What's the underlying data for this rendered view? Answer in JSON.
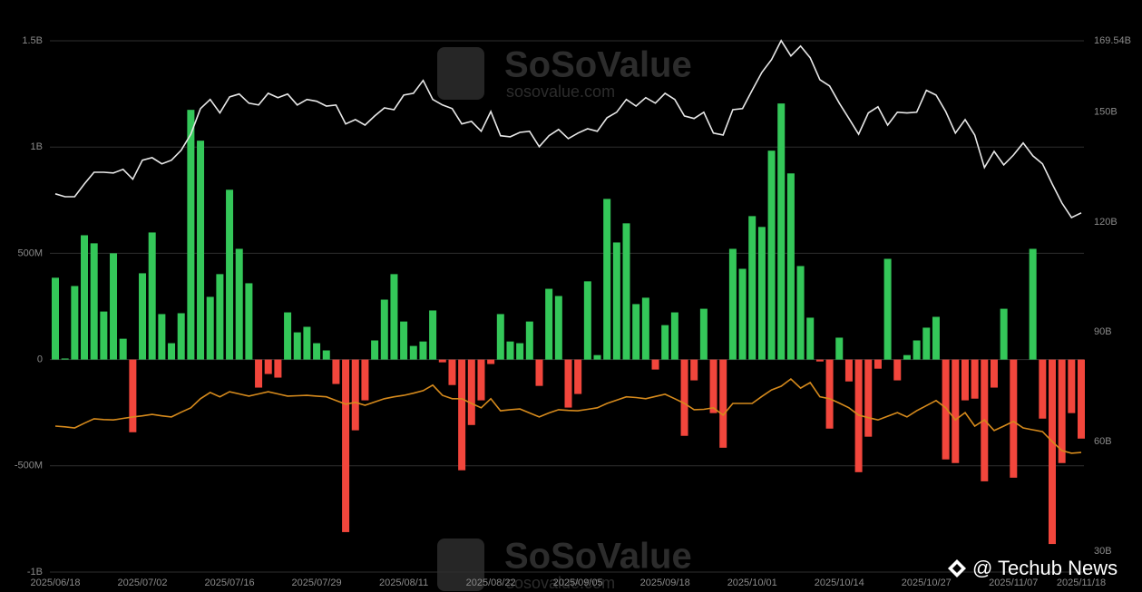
{
  "chart_data": {
    "type": "bar",
    "watermark": "SoSoValue",
    "watermark_url": "sosovalue.com",
    "credit": "@ Techub News",
    "categories": [
      "2025/06/18",
      null,
      null,
      null,
      null,
      null,
      null,
      null,
      null,
      "2025/07/02",
      null,
      null,
      null,
      null,
      null,
      null,
      null,
      null,
      "2025/07/16",
      null,
      null,
      null,
      null,
      null,
      null,
      null,
      null,
      "2025/07/29",
      null,
      null,
      null,
      null,
      null,
      null,
      null,
      null,
      "2025/08/11",
      null,
      null,
      null,
      null,
      null,
      null,
      null,
      null,
      "2025/08/22",
      null,
      null,
      null,
      null,
      null,
      null,
      null,
      null,
      "2025/09/05",
      null,
      null,
      null,
      null,
      null,
      null,
      null,
      null,
      "2025/09/18",
      null,
      null,
      null,
      null,
      null,
      null,
      null,
      null,
      "2025/10/01",
      null,
      null,
      null,
      null,
      null,
      null,
      null,
      null,
      "2025/10/14",
      null,
      null,
      null,
      null,
      null,
      null,
      null,
      null,
      "2025/10/27",
      null,
      null,
      null,
      null,
      null,
      null,
      null,
      null,
      "2025/11/07",
      null,
      null,
      null,
      null,
      null,
      null,
      "2025/11/18"
    ],
    "values": [
      385,
      5,
      346,
      585,
      547,
      226,
      500,
      98,
      -342,
      406,
      598,
      214,
      77,
      218,
      1175,
      1030,
      295,
      402,
      799,
      521,
      359,
      -132,
      -68,
      -85,
      222,
      128,
      154,
      77,
      43,
      -115,
      -812,
      -333,
      -192,
      90,
      282,
      402,
      179,
      64,
      85,
      231,
      -13,
      -120,
      -521,
      -308,
      -192,
      -21,
      214,
      85,
      77,
      179,
      -124,
      333,
      299,
      -226,
      -162,
      368,
      21,
      756,
      551,
      641,
      261,
      291,
      -47,
      162,
      222,
      -359,
      -98,
      239,
      -252,
      -415,
      521,
      427,
      675,
      624,
      983,
      1205,
      876,
      440,
      197,
      -9,
      -325,
      103,
      -103,
      -530,
      -363,
      -43,
      474,
      -98,
      21,
      90,
      150,
      201,
      -470,
      -487,
      -192,
      -184,
      -573,
      -132,
      239,
      -556,
      0,
      521,
      -278,
      -868,
      -487,
      -252,
      -372
    ],
    "color_up": "#34c759",
    "color_down": "#f2463c",
    "lines": [
      {
        "color": "#e8e8e8",
        "axis": "y2",
        "values": [
          127.7,
          126.9,
          126.9,
          130.4,
          133.6,
          133.6,
          133.4,
          134.4,
          131.7,
          136.9,
          137.6,
          135.9,
          136.9,
          139.6,
          144.0,
          151.0,
          153.5,
          149.8,
          154.2,
          155.0,
          152.5,
          152.0,
          155.2,
          154.0,
          155.0,
          152.0,
          153.5,
          153.0,
          151.7,
          152.0,
          146.8,
          148.0,
          146.5,
          149.0,
          151.2,
          150.7,
          154.7,
          155.2,
          158.7,
          153.5,
          152.0,
          151.0,
          146.8,
          147.5,
          144.8,
          150.2,
          143.6,
          143.3,
          144.5,
          144.8,
          140.6,
          143.6,
          145.3,
          142.8,
          144.3,
          145.5,
          144.8,
          148.5,
          150.0,
          153.5,
          151.7,
          154.0,
          152.5,
          155.2,
          153.5,
          149.0,
          148.3,
          150.0,
          144.3,
          143.8,
          150.7,
          151.0,
          156.0,
          160.9,
          164.4,
          169.6,
          165.4,
          168.1,
          164.9,
          158.9,
          157.2,
          152.5,
          148.3,
          144.0,
          149.8,
          151.5,
          146.5,
          150.0,
          149.8,
          150.0,
          156.0,
          154.7,
          150.2,
          144.3,
          148.0,
          143.8,
          134.9,
          139.3,
          135.6,
          138.3,
          141.6,
          138.1,
          135.9,
          130.4,
          125.2,
          121.2,
          122.5
        ]
      },
      {
        "color": "#d68a1c",
        "axis": "y2",
        "values": [
          64.2,
          64.0,
          63.7,
          65.0,
          66.2,
          66.0,
          65.9,
          66.3,
          66.7,
          67.0,
          67.4,
          67.0,
          66.7,
          68.0,
          69.2,
          71.7,
          73.4,
          72.2,
          73.6,
          73.0,
          72.4,
          73.0,
          73.6,
          73.0,
          72.4,
          72.5,
          72.6,
          72.4,
          72.2,
          71.2,
          70.2,
          70.7,
          69.9,
          70.8,
          71.7,
          72.2,
          72.6,
          73.2,
          73.9,
          75.4,
          72.6,
          71.7,
          71.7,
          70.4,
          69.2,
          71.7,
          68.4,
          68.7,
          68.9,
          67.8,
          66.7,
          67.8,
          68.7,
          68.5,
          68.4,
          68.8,
          69.2,
          70.4,
          71.3,
          72.2,
          72.0,
          71.7,
          72.3,
          72.9,
          71.7,
          70.4,
          68.7,
          68.8,
          69.2,
          67.2,
          70.4,
          70.4,
          70.4,
          72.3,
          74.1,
          75.1,
          77.1,
          74.6,
          76.1,
          72.2,
          71.7,
          70.5,
          69.2,
          67.2,
          66.5,
          65.9,
          66.9,
          67.9,
          66.7,
          68.4,
          69.8,
          71.2,
          69.2,
          65.9,
          67.9,
          64.2,
          65.9,
          63.0,
          64.2,
          65.5,
          63.7,
          63.2,
          62.7,
          60.0,
          57.5,
          56.8,
          57.0
        ]
      }
    ],
    "ylim": [
      -1000,
      1500
    ],
    "yticks": [
      {
        "value": 1500,
        "label": "1.5B"
      },
      {
        "value": 1000,
        "label": "1B"
      },
      {
        "value": 500,
        "label": "500M"
      },
      0,
      {
        "value": -500,
        "label": "-500M"
      },
      {
        "value": -1000,
        "label": "-1B"
      }
    ],
    "y2lim": [
      24.3,
      169.54
    ],
    "y2ticks": [
      {
        "value": 169.54,
        "label": "169.54B"
      },
      {
        "value": 150,
        "label": "150B"
      },
      {
        "value": 120,
        "label": "120B"
      },
      {
        "value": 90,
        "label": "90B"
      },
      {
        "value": 60,
        "label": "60B"
      },
      {
        "value": 30,
        "label": "30B"
      }
    ],
    "grid": true
  }
}
